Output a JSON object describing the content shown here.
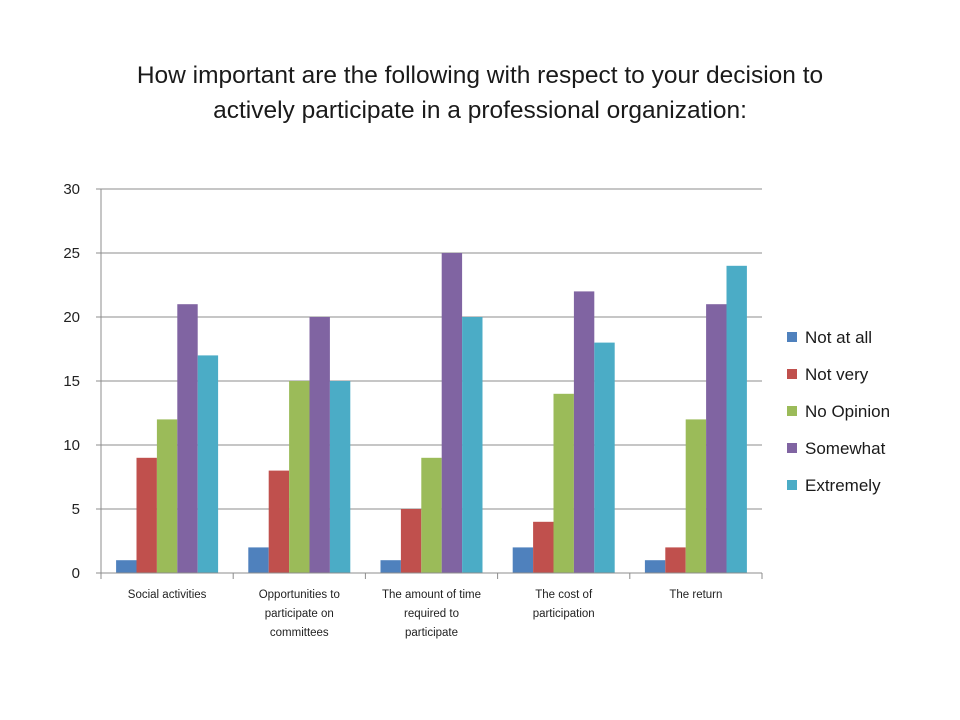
{
  "title_lines": [
    "How important are the following with respect to your decision to",
    "actively participate in a professional organization:"
  ],
  "chart_data": {
    "type": "bar",
    "title": "How important are the following with respect to your decision to actively participate in a professional organization:",
    "categories": [
      "Social activities",
      "Opportunities to participate on committees",
      "The amount of time required to participate",
      "The cost of participation",
      "The return"
    ],
    "category_label_lines": [
      [
        "Social activities"
      ],
      [
        "Opportunities to",
        "participate on",
        "committees"
      ],
      [
        "The amount of time",
        "required to",
        "participate"
      ],
      [
        "The cost of",
        "participation"
      ],
      [
        "The return"
      ]
    ],
    "series": [
      {
        "name": "Not at all",
        "color": "#4f81bd",
        "values": [
          1,
          2,
          1,
          2,
          1
        ]
      },
      {
        "name": "Not very",
        "color": "#c0504d",
        "values": [
          9,
          8,
          5,
          4,
          2
        ]
      },
      {
        "name": "No Opinion",
        "color": "#9bbb59",
        "values": [
          12,
          15,
          9,
          14,
          12
        ]
      },
      {
        "name": "Somewhat",
        "color": "#8064a2",
        "values": [
          21,
          20,
          25,
          22,
          21
        ]
      },
      {
        "name": "Extremely",
        "color": "#4bacc6",
        "values": [
          17,
          15,
          20,
          18,
          24
        ]
      }
    ],
    "ylim": [
      0,
      30
    ],
    "yticks": [
      0,
      5,
      10,
      15,
      20,
      25,
      30
    ],
    "grid": true,
    "legend_position": "right",
    "xlabel": "",
    "ylabel": ""
  }
}
